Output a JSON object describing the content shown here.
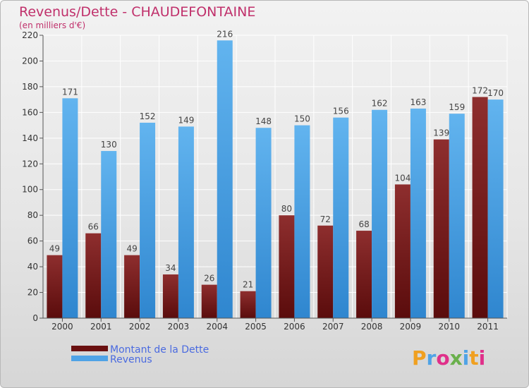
{
  "chart_data": {
    "type": "bar",
    "title": "Revenus/Dette - CHAUDEFONTAINE",
    "subtitle": "(en milliers d'€)",
    "categories": [
      "2000",
      "2001",
      "2002",
      "2003",
      "2004",
      "2005",
      "2006",
      "2007",
      "2008",
      "2009",
      "2010",
      "2011"
    ],
    "series": [
      {
        "name": "Montant de la Dette",
        "color": "#7a1e1e",
        "values": [
          49,
          66,
          49,
          34,
          26,
          21,
          80,
          72,
          68,
          104,
          139,
          172
        ]
      },
      {
        "name": "Revenus",
        "color": "#4fa3e6",
        "values": [
          171,
          130,
          152,
          149,
          216,
          148,
          150,
          156,
          162,
          163,
          159,
          170
        ]
      }
    ],
    "ylim": [
      0,
      220
    ],
    "yticks": [
      0,
      20,
      40,
      60,
      80,
      100,
      120,
      140,
      160,
      180,
      200,
      220
    ],
    "grid": true,
    "legend": "bottom-left"
  },
  "brand": {
    "logo_text": "Proxiti",
    "letter_colors": [
      "#f0a020",
      "#4fa3e6",
      "#e0308a",
      "#6ab04c",
      "#4fa3e6",
      "#f0a020",
      "#e0308a"
    ]
  }
}
